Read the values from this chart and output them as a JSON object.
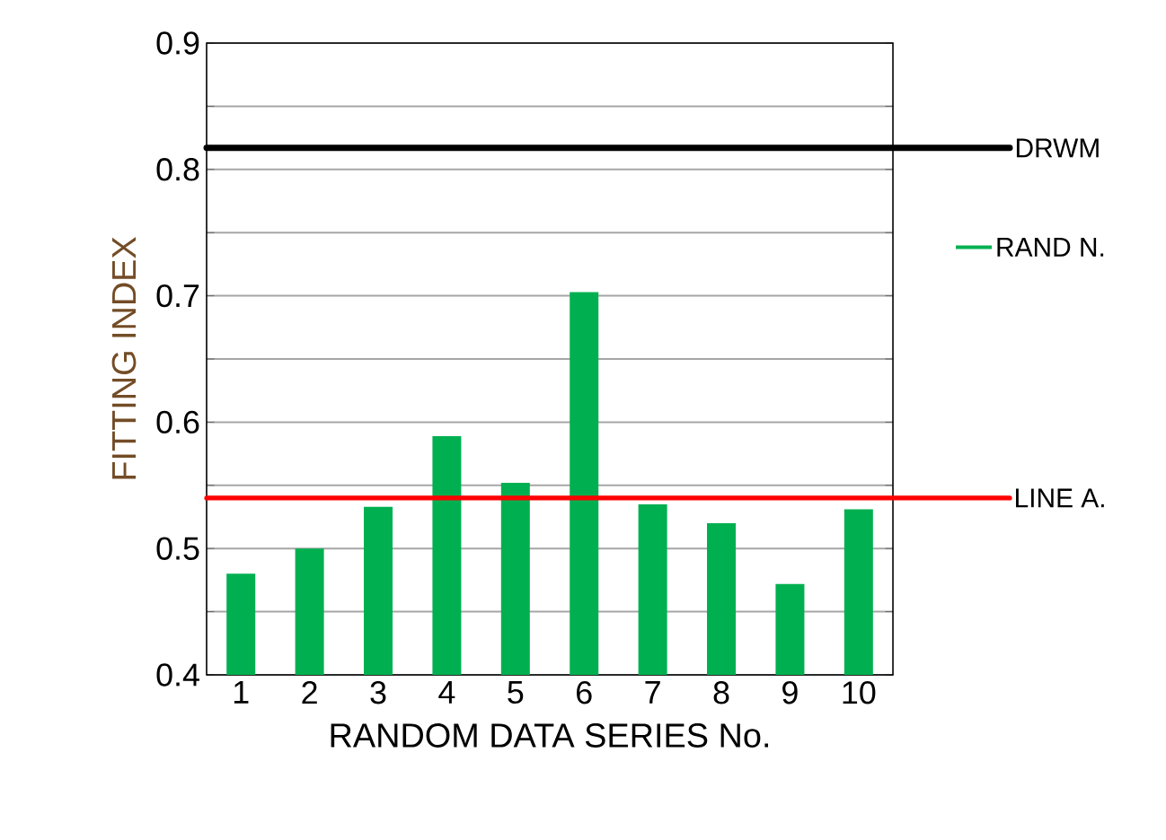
{
  "chart_data": {
    "type": "bar",
    "xlabel": "RANDOM DATA SERIES No.",
    "ylabel": "FITTING INDEX",
    "categories": [
      "1",
      "2",
      "3",
      "4",
      "5",
      "6",
      "7",
      "8",
      "9",
      "10"
    ],
    "series": [
      {
        "name": "RAND N.",
        "color": "#00b050",
        "values": [
          0.48,
          0.5,
          0.533,
          0.589,
          0.552,
          0.703,
          0.535,
          0.52,
          0.472,
          0.531
        ]
      }
    ],
    "ylim": [
      0.4,
      0.9
    ],
    "yticks": [
      0.4,
      {
        "value": 0.45,
        "label": null
      },
      0.5,
      {
        "value": 0.55,
        "label": null
      },
      0.6,
      {
        "value": 0.65,
        "label": null
      },
      0.7,
      {
        "value": 0.75,
        "label": null
      },
      0.8,
      {
        "value": 0.85,
        "label": null
      },
      0.9
    ],
    "grid": "y",
    "legend": "right",
    "ref_lines": [
      {
        "axis": "y",
        "value": 0.817,
        "label": "DRWM",
        "color": "#000000"
      },
      {
        "axis": "y",
        "value": 0.54,
        "label": "LINE A.",
        "color": "#ff0000"
      }
    ]
  }
}
